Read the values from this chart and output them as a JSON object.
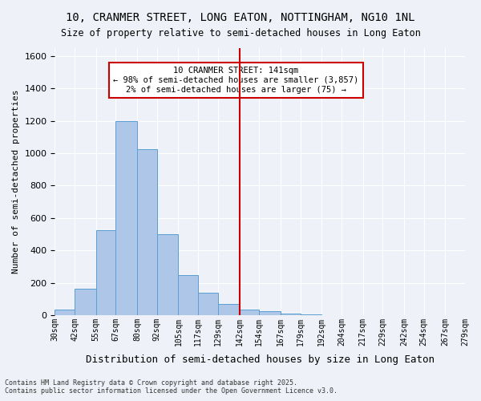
{
  "title_line1": "10, CRANMER STREET, LONG EATON, NOTTINGHAM, NG10 1NL",
  "title_line2": "Size of property relative to semi-detached houses in Long Eaton",
  "xlabel": "Distribution of semi-detached houses by size in Long Eaton",
  "ylabel": "Number of semi-detached properties",
  "annotation_title": "10 CRANMER STREET: 141sqm",
  "annotation_line2": "← 98% of semi-detached houses are smaller (3,857)",
  "annotation_line3": "2% of semi-detached houses are larger (75) →",
  "property_size": 141,
  "bin_edges": [
    30,
    42,
    55,
    67,
    80,
    92,
    105,
    117,
    129,
    142,
    154,
    167,
    179,
    192,
    204,
    217,
    229,
    242,
    254,
    267,
    279
  ],
  "bin_labels": [
    "30sqm",
    "42sqm",
    "55sqm",
    "67sqm",
    "80sqm",
    "92sqm",
    "105sqm",
    "117sqm",
    "129sqm",
    "142sqm",
    "154sqm",
    "167sqm",
    "179sqm",
    "192sqm",
    "204sqm",
    "217sqm",
    "229sqm",
    "242sqm",
    "254sqm",
    "267sqm",
    "279sqm"
  ],
  "bar_heights": [
    35,
    165,
    525,
    1200,
    1025,
    500,
    245,
    140,
    68,
    32,
    22,
    10,
    5,
    0,
    0,
    0,
    0,
    0,
    0,
    0
  ],
  "bar_color": "#aec6e8",
  "bar_edge_color": "#5a9fd4",
  "vline_color": "#cc0000",
  "vline_x": 142,
  "ylim": [
    0,
    1650
  ],
  "yticks": [
    0,
    200,
    400,
    600,
    800,
    1000,
    1200,
    1400,
    1600
  ],
  "background_color": "#eef2f8",
  "grid_color": "#ffffff",
  "footer_line1": "Contains HM Land Registry data © Crown copyright and database right 2025.",
  "footer_line2": "Contains public sector information licensed under the Open Government Licence v3.0."
}
